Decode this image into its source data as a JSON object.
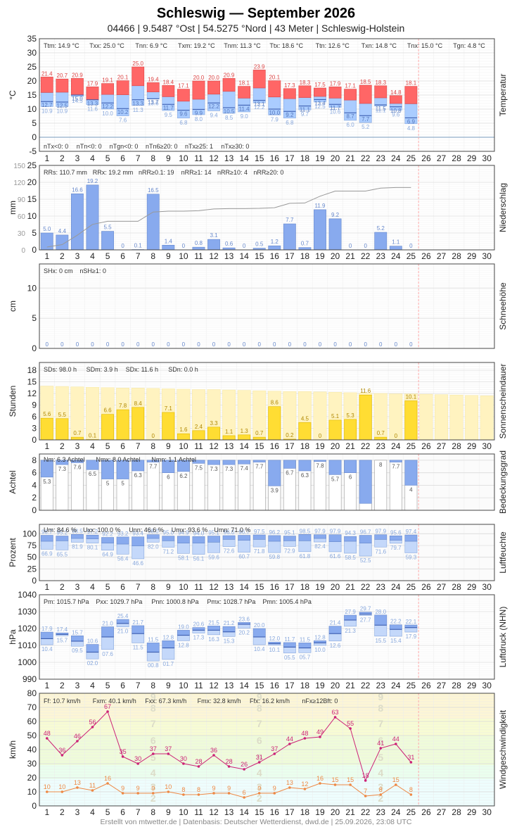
{
  "header": {
    "title": "Schleswig  —  September 2026",
    "subtitle": "04466  |  9.5487 °Ost  |  54.5275 °Nord  |  43 Meter  |  Schleswig-Holstein"
  },
  "footer": "Erstellt von mtwetter.de | Datenbasis: Deutscher Wetterdienst, dwd.de | 25.09.2026, 23:08 UTC",
  "colors": {
    "temp_upper": "#ff6666",
    "temp_lower": "#aaccff",
    "precip": "#88aaee",
    "sun": "#ffdd33",
    "sun_bg": "#fff3c0",
    "cloud": "#88aaee",
    "humidity": "#88aaee",
    "pressure": "#88aaee",
    "wind_avg": "#cc2277",
    "wind_gust": "#ee8844",
    "today_line": "#ffaaaa"
  },
  "chart_data": [
    {
      "type": "bar",
      "panel": "Temperatur",
      "ylabel": "°C",
      "ylim": [
        -5,
        35
      ],
      "days": [
        1,
        2,
        3,
        4,
        5,
        6,
        7,
        8,
        9,
        10,
        11,
        12,
        13,
        14,
        15,
        16,
        17,
        18,
        19,
        20,
        21,
        22,
        23,
        24,
        25,
        26,
        27,
        28,
        29,
        30
      ],
      "tmax": [
        21.4,
        20.7,
        20.9,
        17.9,
        19.1,
        20.1,
        25.0,
        19.4,
        18.4,
        17.1,
        20.0,
        20.0,
        20.9,
        18.1,
        23.9,
        20.1,
        17.3,
        18.3,
        17.5,
        17.9,
        17.1,
        18.5,
        18.3,
        14.8,
        18.1
      ],
      "tmean": [
        15.9,
        16.0,
        15.0,
        13.3,
        15.2,
        15.1,
        18.3,
        16.1,
        14.4,
        12.8,
        13.5,
        15.3,
        16.3,
        13.9,
        17.5,
        14.3,
        13.7,
        14.1,
        14.5,
        13.9,
        13.2,
        12.0,
        14.0,
        12.0,
        11.9
      ],
      "tmean_label": [
        12.7,
        12.5,
        15.0,
        13.3,
        12.2,
        10.2,
        13.3,
        13.7,
        11.7,
        9.6,
        9.9,
        12.2,
        10.5,
        11.4,
        13.1,
        10.0,
        9.2,
        11.1,
        13.4,
        11.7,
        8.7,
        7.7,
        11.5,
        10.8,
        6.9
      ],
      "tmin": [
        10.9,
        10.9,
        14.5,
        11.6,
        10.0,
        7.6,
        11.3,
        13.6,
        9.5,
        6.8,
        8.0,
        9.4,
        8.5,
        9.0,
        12.2,
        7.9,
        6.8,
        9.7,
        12.5,
        10.6,
        6.0,
        5.2,
        11.1,
        9.6,
        4.8
      ],
      "stats": [
        "Ttm: 14.9 °C",
        "Txx: 25.0 °C",
        "Tnn: 6.9 °C",
        "Txm: 19.2 °C",
        "Tnm: 11.3 °C",
        "Ttx: 18.6 °C",
        "Ttn: 12.6 °C",
        "Txn: 14.8 °C",
        "Tnx: 15.0 °C",
        "Tgn: 4.8 °C"
      ],
      "stats_bottom": [
        "nTx<0: 0",
        "nTn<0: 0",
        "nTgn<0: 0",
        "nTn6≥20: 0",
        "nTx≥25: 1",
        "nTx≥30: 0"
      ]
    },
    {
      "type": "bar",
      "panel": "Niederschlag",
      "ylabel": "mm",
      "ylim": [
        0,
        25
      ],
      "ylim_cum": [
        0,
        150
      ],
      "values": [
        5.0,
        4.4,
        16.6,
        19.2,
        5.5,
        0,
        0.1,
        16.5,
        1.4,
        0,
        0.8,
        3.1,
        0.6,
        0,
        0.5,
        1.2,
        7.7,
        0.7,
        11.9,
        9.2,
        0,
        0,
        5.2,
        1.1,
        0
      ],
      "labels": [
        "5.0",
        "4.4",
        "16.6",
        "19.2",
        "5.5",
        "0",
        "0.1",
        "16.5",
        "1.4",
        "0",
        "0.8",
        "3.1",
        "0.6",
        "0",
        "0.5",
        "1.2",
        "7.7",
        "0.7",
        "11.9",
        "9.2",
        "0",
        "0",
        "5.2",
        "1.1",
        "0"
      ],
      "stats": [
        "RRs: 110.7 mm",
        "RRx: 19.2 mm",
        "nRR≥0.1: 19",
        "nRR≥1: 14",
        "nRR≥10: 4",
        "nRR≥20: 0"
      ]
    },
    {
      "type": "bar",
      "panel": "Schneehöhe",
      "ylabel": "cm",
      "ylim": [
        0,
        14
      ],
      "values": [
        0,
        0,
        0,
        0,
        0,
        0,
        0,
        0,
        0,
        0,
        0,
        0,
        0,
        0,
        0,
        0,
        0,
        0,
        0,
        0,
        0,
        0,
        0,
        0,
        0
      ],
      "stats": [
        "SHx: 0 cm",
        "nSH≥1: 0"
      ]
    },
    {
      "type": "bar",
      "panel": "Sonnenscheindauer",
      "ylabel": "Stunden",
      "ylim": [
        0,
        20
      ],
      "values": [
        5.6,
        5.5,
        0.7,
        0.1,
        6.6,
        7.8,
        8.4,
        0,
        7.1,
        1.6,
        2.4,
        3.3,
        1.1,
        1.3,
        0.7,
        8.6,
        0.2,
        4.5,
        0,
        5.1,
        5.3,
        11.6,
        0.7,
        0,
        10.1
      ],
      "possible": [
        13.9,
        13.8,
        13.7,
        13.6,
        13.5,
        13.4,
        13.4,
        13.3,
        13.2,
        13.1,
        13.0,
        13.0,
        12.9,
        12.8,
        12.7,
        12.6,
        12.5,
        12.5,
        12.4,
        12.3,
        12.2,
        12.1,
        12.0,
        11.9,
        11.9,
        11.8,
        11.7,
        11.6,
        11.5,
        11.4
      ],
      "stats": [
        "SDs: 98.0 h",
        "SDm: 3.9 h",
        "SDx: 11.6 h",
        "SDn: 0.0 h"
      ]
    },
    {
      "type": "bar",
      "panel": "Bedeckungsgrad",
      "ylabel": "Achtel",
      "ylim": [
        0,
        9
      ],
      "values": [
        5.3,
        7.3,
        7.6,
        6.5,
        5.0,
        5.0,
        6.3,
        7.7,
        6.0,
        6.2,
        7.5,
        7.3,
        7.3,
        7.4,
        7.7,
        3.9,
        6.7,
        6.3,
        7.8,
        5.7,
        6.0,
        1.1,
        8.0,
        7.7,
        4.0
      ],
      "stats": [
        "Nm: 6.3 Achtel",
        "Nmx: 8.0 Achtel",
        "Nmn: 1.1 Achtel"
      ]
    },
    {
      "type": "bar",
      "panel": "Luftfeuchte",
      "ylabel": "Prozent",
      "ylim": [
        0,
        120
      ],
      "max": [
        96.7,
        95.2,
        98.5,
        97.2,
        92.2,
        93.2,
        93.4,
        98.0,
        95.0,
        94.9,
        94.0,
        95.1,
        96.0,
        96.7,
        97.5,
        96.2,
        95.1,
        98.5,
        97.9,
        97.9,
        94.3,
        96.7,
        97.9,
        95.6,
        97.4
      ],
      "mean": [
        84.0,
        85.0,
        90.0,
        89.0,
        80.0,
        78.0,
        74.0,
        90.0,
        85.0,
        80.0,
        80.0,
        82.0,
        88.0,
        86.0,
        88.0,
        84.0,
        85.0,
        85.0,
        90.0,
        83.0,
        84.0,
        80.0,
        88.0,
        86.0,
        84.0
      ],
      "min": [
        66.9,
        65.5,
        81.9,
        80.1,
        64.9,
        56.4,
        46.6,
        82.0,
        71.2,
        58.1,
        56.1,
        59.6,
        72.6,
        60.7,
        71.8,
        59.8,
        72.9,
        61.8,
        82.4,
        61.6,
        58.5,
        52.5,
        71.6,
        79.7,
        59.3
      ],
      "max_labels": [
        "96.7",
        "95.2",
        "98.5",
        "97.2",
        "92.2",
        "93.2",
        "93.4",
        "98.0",
        "95.0",
        "94.9",
        "94.0",
        "95.1",
        "96.0",
        "96.7",
        "97.5",
        "96.2",
        "95.1",
        "98.5",
        "97.9",
        "97.9",
        "94.3",
        "96.7",
        "97.9",
        "95.6",
        "97.4"
      ],
      "min_labels": [
        "66.9",
        "65.5",
        "81.9",
        "80.1",
        "64.9",
        "56.4",
        "46.6",
        "82.0",
        "71.2",
        "58.1",
        "56.1",
        "59.6",
        "72.6",
        "60.7",
        "71.8",
        "59.8",
        "72.9",
        "61.8",
        "82.4",
        "61.6",
        "58.5",
        "52.5",
        "71.6",
        "79.7",
        "59.3"
      ],
      "stats": [
        "Um: 84.6 %",
        "Uxx: 100.0 %",
        "Unn: 46.6 %",
        "Umx: 93.6 %",
        "Umn: 71.0 %"
      ]
    },
    {
      "type": "bar",
      "panel": "Luftdruck (NHN)",
      "ylabel": "hPa",
      "ylim": [
        990,
        1040
      ],
      "max": [
        1017.9,
        1017.4,
        1015.7,
        1010.6,
        1021.0,
        1025.4,
        1021.7,
        1011.5,
        1012.8,
        1019.0,
        1020.6,
        1021.5,
        1021.2,
        1023.6,
        1020.0,
        1012.0,
        1011.7,
        1011.5,
        1012.8,
        1021.4,
        1027.9,
        1029.7,
        1028.0,
        1022.2,
        1022.1
      ],
      "mean": [
        1014.0,
        1016.5,
        1012.5,
        1006.0,
        1015.0,
        1023.0,
        1017.0,
        1006.0,
        1008.5,
        1016.0,
        1019.0,
        1019.0,
        1018.0,
        1022.5,
        1015.0,
        1011.0,
        1009.0,
        1008.5,
        1011.5,
        1017.0,
        1025.0,
        1028.5,
        1022.0,
        1019.5,
        1020.5
      ],
      "min": [
        1010.4,
        1015.7,
        1009.5,
        1002.0,
        1007.6,
        1021.0,
        1011.5,
        1000.8,
        1001.7,
        1012.8,
        1017.3,
        1016.3,
        1015.3,
        1020.2,
        1010.4,
        1010.1,
        1005.5,
        1005.7,
        1010.0,
        1012.6,
        1021.3,
        1027.7,
        1015.5,
        1015.4,
        1017.9
      ],
      "max_labels": [
        "17.9",
        "17.4",
        "15.7",
        "10.6",
        "21.0",
        "25.4",
        "21.7",
        "11.5",
        "12.8",
        "19.0",
        "20.6",
        "21.5",
        "21.2",
        "23.6",
        "20.0",
        "12.0",
        "11.7",
        "11.5",
        "12.8",
        "21.4",
        "27.9",
        "29.7",
        "28.0",
        "22.2",
        "22.1"
      ],
      "min_labels": [
        "10.4",
        "15.7",
        "09.5",
        "02.0",
        "07.6",
        "21.0",
        "11.5",
        "00.8",
        "01.7",
        "12.8",
        "17.3",
        "16.3",
        "15.3",
        "20.2",
        "10.4",
        "10.1",
        "05.5",
        "05.7",
        "10.0",
        "12.6",
        "21.3",
        "27.7",
        "15.5",
        "15.4",
        "17.9"
      ],
      "stats": [
        "Pm: 1015.7 hPa",
        "Pxx: 1029.7 hPa",
        "Pnn: 1000.8 hPa",
        "Pmx: 1028.7 hPa",
        "Pmn: 1005.4 hPa"
      ]
    },
    {
      "type": "line",
      "panel": "Windgeschwindigkeit",
      "ylabel": "km/h",
      "ylim": [
        0,
        80
      ],
      "gust": [
        48,
        36,
        46,
        56,
        67,
        35,
        30,
        37,
        37,
        30,
        28,
        36,
        28,
        26,
        31,
        37,
        44,
        48,
        49,
        63,
        55,
        18,
        41,
        44,
        31
      ],
      "mean": [
        10,
        10,
        13,
        11,
        16,
        9,
        9,
        9,
        10,
        8,
        8,
        9,
        9,
        6,
        9,
        9,
        13,
        12,
        16,
        15,
        15,
        7,
        8,
        15,
        8
      ],
      "bft_labels": [
        "9",
        "8",
        "7",
        "6",
        "5",
        "4",
        "3",
        "2"
      ],
      "stats": [
        "Ff: 10.7 km/h",
        "Fxm: 40.1 km/h",
        "Fxx: 67.3 km/h",
        "Fmx: 32.8 km/h",
        "Ffx: 16.2 km/h",
        "nFx≥12Bft: 0"
      ]
    }
  ]
}
